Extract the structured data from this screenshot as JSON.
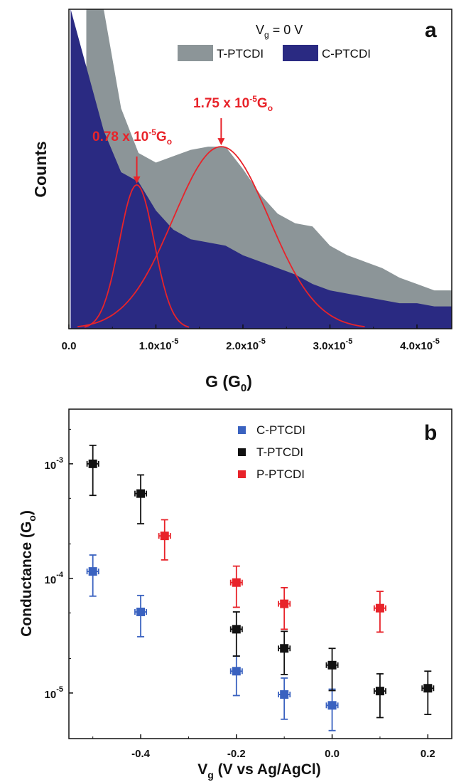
{
  "chart_data": [
    {
      "panel": "a",
      "type": "area",
      "annotation_header": {
        "main": "V",
        "sub": "g",
        "tail": " = 0 V"
      },
      "ylabel": "Counts",
      "xlabel": {
        "main": "G (G",
        "sub": "0",
        "tail": ")"
      },
      "xlim": [
        0,
        4.4e-05
      ],
      "x_ticks": [
        {
          "value": 0,
          "label": "0.0"
        },
        {
          "value": 1e-05,
          "label": "1.0x10",
          "exp": "-5"
        },
        {
          "value": 2e-05,
          "label": "2.0x10",
          "exp": "-5"
        },
        {
          "value": 3e-05,
          "label": "3.0x10",
          "exp": "-5"
        },
        {
          "value": 4e-05,
          "label": "4.0x10",
          "exp": "-5"
        }
      ],
      "y_ticks_shown": false,
      "legend": [
        {
          "label": "T-PTCDI",
          "color": "#8c9598"
        },
        {
          "label": "C-PTCDI",
          "color": "#2a2a82"
        }
      ],
      "series": [
        {
          "name": "T-PTCDI",
          "color": "#8c9598",
          "x": [
            2e-06,
            4e-06,
            6e-06,
            8e-06,
            1e-05,
            1.2e-05,
            1.4e-05,
            1.6e-05,
            1.8e-05,
            2e-05,
            2.2e-05,
            2.4e-05,
            2.6e-05,
            2.8e-05,
            3e-05,
            3.2e-05,
            3.4e-05,
            3.6e-05,
            3.8e-05,
            4e-05,
            4.2e-05,
            4.4e-05
          ],
          "y": [
            100,
            100,
            69,
            55,
            52,
            54,
            56,
            57,
            57,
            50,
            42,
            36,
            33,
            32,
            26,
            23,
            21,
            19,
            16,
            14,
            12,
            12
          ]
        },
        {
          "name": "C-PTCDI",
          "color": "#2a2a82",
          "x": [
            2e-07,
            2e-06,
            4e-06,
            6e-06,
            8e-06,
            1e-05,
            1.2e-05,
            1.4e-05,
            1.6e-05,
            1.8e-05,
            2e-05,
            2.2e-05,
            2.4e-05,
            2.6e-05,
            2.8e-05,
            3e-05,
            3.2e-05,
            3.4e-05,
            3.6e-05,
            3.8e-05,
            4e-05,
            4.2e-05,
            4.4e-05
          ],
          "y": [
            100,
            82,
            62,
            49,
            46,
            37,
            31,
            28,
            27,
            26,
            23,
            21,
            19,
            17,
            14,
            12,
            11,
            10,
            9,
            8,
            8,
            7,
            7
          ]
        }
      ],
      "fits": [
        {
          "center": 7.8e-06,
          "width": 2e-06,
          "peak": 45,
          "color": "#e8232a"
        },
        {
          "center": 1.75e-05,
          "width": 5.5e-06,
          "peak": 57,
          "color": "#e8232a"
        }
      ],
      "annotations": [
        {
          "text": "0.78 x 10",
          "exp": "-5",
          "unit": "G",
          "unit_sub": "o",
          "x": 7.8e-06,
          "y": 45
        },
        {
          "text": "1.75 x 10",
          "exp": "-5",
          "unit": "G",
          "unit_sub": "o",
          "x": 1.75e-05,
          "y": 57
        }
      ]
    },
    {
      "panel": "b",
      "type": "scatter",
      "log_y": true,
      "xlim": [
        -0.55,
        0.25
      ],
      "ylim": [
        4e-06,
        0.003
      ],
      "ylabel": {
        "main": "Conductance (G",
        "sub": "o",
        "tail": ")"
      },
      "xlabel": {
        "main": "V",
        "sub": "g",
        "tail": " (V vs Ag/AgCl)"
      },
      "x_ticks": [
        {
          "value": -0.4,
          "label": "-0.4"
        },
        {
          "value": -0.2,
          "label": "-0.2"
        },
        {
          "value": 0.0,
          "label": "0.0"
        },
        {
          "value": 0.2,
          "label": "0.2"
        }
      ],
      "y_ticks": [
        {
          "value": 0.001,
          "label": "10",
          "exp": "-3"
        },
        {
          "value": 0.0001,
          "label": "10",
          "exp": "-4"
        },
        {
          "value": 1e-05,
          "label": "10",
          "exp": "-5"
        }
      ],
      "x_err": 0.012,
      "series": [
        {
          "name": "C-PTCDI",
          "color": "#3a62c0",
          "points": [
            {
              "x": -0.5,
              "y": 0.000115,
              "lo": 7e-05,
              "hi": 0.00016
            },
            {
              "x": -0.4,
              "y": 5.1e-05,
              "lo": 3.1e-05,
              "hi": 7.1e-05
            },
            {
              "x": -0.2,
              "y": 1.55e-05,
              "lo": 9.5e-06,
              "hi": 2.1e-05
            },
            {
              "x": -0.1,
              "y": 9.7e-06,
              "lo": 5.9e-06,
              "hi": 1.35e-05
            },
            {
              "x": 0.0,
              "y": 7.8e-06,
              "lo": 4.7e-06,
              "hi": 1.08e-05
            }
          ]
        },
        {
          "name": "T-PTCDI",
          "color": "#111111",
          "points": [
            {
              "x": -0.5,
              "y": 0.001,
              "lo": 0.00053,
              "hi": 0.00145
            },
            {
              "x": -0.4,
              "y": 0.00055,
              "lo": 0.0003,
              "hi": 0.0008
            },
            {
              "x": -0.2,
              "y": 3.6e-05,
              "lo": 2.1e-05,
              "hi": 5.1e-05
            },
            {
              "x": -0.1,
              "y": 2.45e-05,
              "lo": 1.45e-05,
              "hi": 3.45e-05
            },
            {
              "x": 0.0,
              "y": 1.75e-05,
              "lo": 1.05e-05,
              "hi": 2.45e-05
            },
            {
              "x": 0.1,
              "y": 1.04e-05,
              "lo": 6.1e-06,
              "hi": 1.47e-05
            },
            {
              "x": 0.2,
              "y": 1.1e-05,
              "lo": 6.5e-06,
              "hi": 1.55e-05
            }
          ]
        },
        {
          "name": "P-PTCDI",
          "color": "#e8232a",
          "points": [
            {
              "x": -0.35,
              "y": 0.000235,
              "lo": 0.000145,
              "hi": 0.000325
            },
            {
              "x": -0.2,
              "y": 9.2e-05,
              "lo": 5.6e-05,
              "hi": 0.000128
            },
            {
              "x": -0.1,
              "y": 6e-05,
              "lo": 3.6e-05,
              "hi": 8.3e-05
            },
            {
              "x": 0.1,
              "y": 5.5e-05,
              "lo": 3.4e-05,
              "hi": 7.7e-05
            }
          ]
        }
      ],
      "legend": [
        {
          "label": "C-PTCDI",
          "color": "#3a62c0"
        },
        {
          "label": "T-PTCDI",
          "color": "#111111"
        },
        {
          "label": "P-PTCDI",
          "color": "#e8232a"
        }
      ]
    }
  ]
}
